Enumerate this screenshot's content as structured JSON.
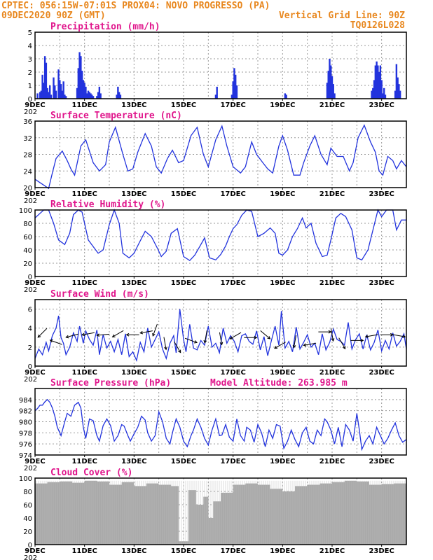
{
  "header": {
    "left1": "CPTEC:   056:15W-07:01S   PROX04: NOVO PROGRESSO (PA)",
    "left2": "09DEC2020 90Z (GMT)",
    "right2": "Vertical Grid Line: 90Z",
    "right3": "TQ0126L028",
    "altitude": "Model Altitude: 263.985 m"
  },
  "colors": {
    "header": "#e8871e",
    "panel_title": "#e0168c",
    "series": "#2233dd",
    "cloud": "#a9a9a9"
  },
  "x_axis": {
    "day_range": [
      9,
      24
    ],
    "tick_labels": [
      "9DEC",
      "11DEC",
      "13DEC",
      "15DEC",
      "17DEC",
      "19DEC",
      "21DEC",
      "23DEC"
    ],
    "tick_days": [
      9,
      11,
      13,
      15,
      17,
      19,
      21,
      23
    ],
    "year_label": "202"
  },
  "chart_data": [
    {
      "type": "bar",
      "title": "Precipitation (mm/h)",
      "ylim": [
        0,
        5
      ],
      "yticks": [
        "0",
        "1",
        "2",
        "3",
        "4",
        "5"
      ],
      "grid": true,
      "series": [
        {
          "x": [
            9.1,
            9.2,
            9.25,
            9.3,
            9.35,
            9.4,
            9.45,
            9.5,
            9.55,
            9.6,
            9.65,
            9.75,
            9.8,
            9.85,
            9.95,
            10.0,
            10.05,
            10.1,
            10.15,
            10.2,
            10.25,
            10.7,
            10.75,
            10.8,
            10.85,
            10.9,
            10.95,
            11.0,
            11.05,
            11.1,
            11.15,
            11.2,
            11.25,
            11.3,
            11.35,
            11.5,
            11.55,
            11.6,
            11.65,
            12.3,
            12.35,
            12.4,
            12.45,
            16.3,
            16.35,
            16.95,
            17.0,
            17.05,
            17.1,
            17.15,
            19.1,
            19.15,
            20.8,
            20.85,
            20.9,
            20.95,
            21.0,
            21.05,
            21.1,
            22.6,
            22.65,
            22.7,
            22.75,
            22.8,
            22.85,
            22.9,
            22.95,
            23.0,
            23.05,
            23.1,
            23.15,
            23.55,
            23.6,
            23.65,
            23.7,
            23.75
          ]
        }
      ],
      "values": [
        0.4,
        0.5,
        0.6,
        1.8,
        1.2,
        3.2,
        2.7,
        0.8,
        0.5,
        1.0,
        0.3,
        1.6,
        1.0,
        0.6,
        2.2,
        1.4,
        1.1,
        0.6,
        1.3,
        0.3,
        0.2,
        0.8,
        2.3,
        3.5,
        3.2,
        2.1,
        1.4,
        1.2,
        0.9,
        0.4,
        0.6,
        0.5,
        0.4,
        0.3,
        0.2,
        0.2,
        0.5,
        0.9,
        0.4,
        0.3,
        0.9,
        0.5,
        0.3,
        0.3,
        0.9,
        0.3,
        1.3,
        2.3,
        1.8,
        1.0,
        0.4,
        0.3,
        1.2,
        2.1,
        3.0,
        2.5,
        1.7,
        1.1,
        0.4,
        0.6,
        0.8,
        1.4,
        2.5,
        2.8,
        2.5,
        2.0,
        2.5,
        1.4,
        0.4,
        0.8,
        0.3,
        0.6,
        2.6,
        1.6,
        1.1,
        0.6
      ]
    },
    {
      "type": "line",
      "title": "Surface Temperature (nC)",
      "ylim": [
        20,
        36
      ],
      "yticks": [
        "20",
        "24",
        "28",
        "32",
        "36"
      ],
      "grid": true,
      "x": [
        9.0,
        9.2,
        9.35,
        9.55,
        9.7,
        9.85,
        10.1,
        10.3,
        10.45,
        10.6,
        10.85,
        11.05,
        11.35,
        11.6,
        11.85,
        12.0,
        12.25,
        12.55,
        12.75,
        12.95,
        13.15,
        13.45,
        13.7,
        13.9,
        14.1,
        14.35,
        14.55,
        14.8,
        15.0,
        15.3,
        15.55,
        15.8,
        16.0,
        16.3,
        16.55,
        16.75,
        17.0,
        17.3,
        17.5,
        17.75,
        17.95,
        18.2,
        18.4,
        18.6,
        18.85,
        19.0,
        19.2,
        19.45,
        19.7,
        19.85,
        20.1,
        20.3,
        20.55,
        20.8,
        20.95,
        21.2,
        21.45,
        21.7,
        21.85,
        22.05,
        22.3,
        22.55,
        22.75,
        22.9,
        23.05,
        23.25,
        23.45,
        23.6,
        23.8,
        24.0
      ],
      "series": [
        {
          "values": [
            22,
            21.2,
            20.6,
            19.8,
            23.5,
            27.0,
            28.8,
            26.5,
            24.5,
            23.0,
            30.0,
            31.5,
            26.0,
            24.0,
            25.5,
            31.0,
            34.5,
            28.0,
            24.0,
            24.5,
            28.5,
            33.0,
            30.0,
            25.0,
            23.5,
            27.0,
            29.0,
            26.0,
            26.5,
            32.5,
            34.5,
            28.0,
            25.0,
            31.5,
            34.8,
            30.0,
            25.0,
            23.5,
            25.0,
            31.0,
            28.0,
            26.0,
            24.5,
            23.5,
            30.0,
            32.5,
            29.0,
            23.0,
            23.0,
            26.0,
            30.0,
            32.5,
            28.0,
            25.5,
            29.5,
            27.5,
            27.5,
            24.0,
            26.0,
            32.0,
            35.0,
            31.0,
            28.5,
            24.0,
            23.0,
            27.5,
            26.5,
            24.5,
            26.5,
            25.0
          ]
        }
      ]
    },
    {
      "type": "line",
      "title": "Relative Humidity (%)",
      "ylim": [
        0,
        100
      ],
      "yticks": [
        "0",
        "20",
        "40",
        "60",
        "80",
        "100"
      ],
      "grid": true,
      "x": [
        9.0,
        9.2,
        9.35,
        9.55,
        9.75,
        9.95,
        10.2,
        10.4,
        10.55,
        10.75,
        10.9,
        11.15,
        11.35,
        11.55,
        11.75,
        12.0,
        12.2,
        12.4,
        12.55,
        12.8,
        13.0,
        13.2,
        13.45,
        13.7,
        13.95,
        14.1,
        14.3,
        14.5,
        14.75,
        15.0,
        15.25,
        15.45,
        15.65,
        15.85,
        16.05,
        16.3,
        16.5,
        16.7,
        16.85,
        17.0,
        17.15,
        17.35,
        17.55,
        17.75,
        18.0,
        18.25,
        18.5,
        18.7,
        18.85,
        19.0,
        19.2,
        19.4,
        19.6,
        19.8,
        19.95,
        20.15,
        20.35,
        20.6,
        20.8,
        20.95,
        21.15,
        21.35,
        21.55,
        21.8,
        22.0,
        22.2,
        22.45,
        22.65,
        22.85,
        23.0,
        23.2,
        23.45,
        23.6,
        23.8,
        24.0
      ],
      "series": [
        {
          "values": [
            88,
            95,
            100,
            100,
            80,
            55,
            48,
            65,
            93,
            100,
            97,
            55,
            45,
            35,
            40,
            78,
            100,
            80,
            35,
            28,
            35,
            50,
            68,
            60,
            42,
            30,
            38,
            65,
            72,
            30,
            24,
            32,
            45,
            58,
            28,
            25,
            33,
            46,
            60,
            72,
            78,
            92,
            100,
            98,
            60,
            65,
            73,
            65,
            35,
            32,
            40,
            60,
            72,
            88,
            73,
            80,
            50,
            30,
            32,
            55,
            88,
            95,
            90,
            70,
            28,
            25,
            40,
            70,
            100,
            90,
            100,
            100,
            70,
            85,
            85
          ]
        }
      ]
    },
    {
      "type": "line",
      "title": "Surface Wind (m/s)",
      "ylim": [
        0,
        7
      ],
      "yticks": [
        "0",
        "2",
        "4",
        "6"
      ],
      "grid": true,
      "x": [
        9.0,
        9.15,
        9.3,
        9.45,
        9.55,
        9.7,
        9.85,
        9.95,
        10.05,
        10.15,
        10.25,
        10.4,
        10.55,
        10.7,
        10.8,
        10.95,
        11.05,
        11.2,
        11.35,
        11.5,
        11.6,
        11.75,
        11.9,
        12.05,
        12.2,
        12.35,
        12.5,
        12.65,
        12.8,
        12.95,
        13.1,
        13.25,
        13.4,
        13.55,
        13.7,
        13.85,
        14.0,
        14.15,
        14.3,
        14.45,
        14.6,
        14.7,
        14.85,
        15.0,
        15.1,
        15.25,
        15.4,
        15.55,
        15.7,
        15.85,
        16.0,
        16.15,
        16.3,
        16.45,
        16.6,
        16.75,
        16.9,
        17.05,
        17.2,
        17.35,
        17.5,
        17.65,
        17.8,
        17.95,
        18.1,
        18.25,
        18.4,
        18.55,
        18.7,
        18.85,
        18.95,
        19.1,
        19.25,
        19.4,
        19.55,
        19.7,
        19.85,
        20.0,
        20.15,
        20.3,
        20.45,
        20.6,
        20.75,
        20.9,
        21.05,
        21.2,
        21.35,
        21.5,
        21.65,
        21.8,
        21.95,
        22.1,
        22.25,
        22.4,
        22.55,
        22.7,
        22.85,
        23.0,
        23.15,
        23.3,
        23.45,
        23.6,
        23.75,
        23.9,
        24.0
      ],
      "series": [
        {
          "values": [
            0.8,
            1.8,
            1.2,
            2.5,
            1.6,
            3.2,
            4.0,
            5.3,
            3.0,
            2.4,
            1.2,
            2.0,
            3.5,
            2.6,
            4.2,
            2.4,
            3.7,
            2.8,
            2.2,
            3.8,
            1.2,
            3.3,
            1.9,
            2.6,
            1.5,
            2.8,
            1.2,
            3.4,
            1.0,
            1.5,
            0.6,
            2.5,
            1.5,
            4.0,
            2.0,
            2.8,
            3.6,
            1.8,
            0.8,
            2.4,
            3.2,
            1.4,
            6.0,
            2.8,
            1.5,
            4.4,
            1.9,
            1.7,
            2.7,
            2.2,
            4.2,
            2.0,
            2.4,
            1.4,
            4.0,
            2.4,
            3.2,
            2.6,
            1.5,
            3.2,
            3.4,
            2.6,
            2.3,
            3.7,
            1.7,
            3.1,
            1.1,
            2.7,
            4.2,
            2.2,
            5.8,
            1.9,
            2.6,
            1.5,
            4.1,
            1.8,
            2.5,
            3.3,
            2.0,
            2.4,
            1.2,
            3.4,
            1.7,
            2.5,
            3.9,
            2.8,
            2.6,
            2.2,
            4.6,
            1.8,
            2.8,
            3.4,
            1.8,
            3.3,
            1.7,
            2.5,
            3.8,
            1.6,
            2.7,
            1.8,
            3.5,
            2.1,
            2.6,
            3.4,
            1.8
          ]
        }
      ],
      "wind_vectors": {
        "x": [
          9.3,
          9.85,
          10.5,
          11.15,
          11.75,
          12.35,
          12.95,
          13.5,
          13.85,
          14.25,
          14.75,
          15.3,
          15.9,
          16.5,
          17.1,
          17.7,
          18.3,
          18.9,
          19.5,
          20.1,
          20.7,
          21.0,
          21.4,
          22.0,
          22.6,
          23.2,
          23.7
        ],
        "y": [
          3.5,
          2.5,
          3.2,
          3.4,
          3.3,
          3.4,
          3.3,
          3.6,
          3.8,
          2.4,
          2.0,
          2.7,
          3.1,
          2.9,
          3.2,
          3.0,
          3.3,
          2.2,
          2.6,
          2.3,
          3.6,
          3.3,
          2.4,
          2.7,
          3.2,
          3.3,
          3.2
        ],
        "dir_deg": [
          135,
          200,
          165,
          170,
          175,
          150,
          180,
          170,
          110,
          80,
          60,
          20,
          100,
          80,
          150,
          0,
          40,
          150,
          100,
          170,
          0,
          80,
          60,
          0,
          170,
          0,
          10
        ]
      }
    },
    {
      "type": "line",
      "title": "Surface Pressure (hPa)",
      "ylim": [
        974,
        986
      ],
      "yticks": [
        "974",
        "976",
        "978",
        "980",
        "982",
        "984"
      ],
      "grid": true,
      "x": [
        9.0,
        9.1,
        9.2,
        9.3,
        9.4,
        9.5,
        9.6,
        9.7,
        9.8,
        9.9,
        10.05,
        10.2,
        10.3,
        10.45,
        10.6,
        10.75,
        10.85,
        10.95,
        11.05,
        11.2,
        11.35,
        11.5,
        11.6,
        11.75,
        11.9,
        12.05,
        12.2,
        12.35,
        12.5,
        12.6,
        12.75,
        12.85,
        13.0,
        13.15,
        13.3,
        13.45,
        13.55,
        13.7,
        13.85,
        14.0,
        14.15,
        14.3,
        14.45,
        14.55,
        14.7,
        14.85,
        15.0,
        15.15,
        15.3,
        15.4,
        15.55,
        15.7,
        15.85,
        16.0,
        16.15,
        16.3,
        16.45,
        16.55,
        16.7,
        16.85,
        17.0,
        17.15,
        17.3,
        17.45,
        17.55,
        17.7,
        17.85,
        18.0,
        18.15,
        18.3,
        18.45,
        18.6,
        18.75,
        18.9,
        19.05,
        19.2,
        19.35,
        19.5,
        19.65,
        19.8,
        19.95,
        20.1,
        20.25,
        20.4,
        20.55,
        20.7,
        20.8,
        20.95,
        21.1,
        21.25,
        21.4,
        21.55,
        21.7,
        21.85,
        22.0,
        22.1,
        22.2,
        22.35,
        22.5,
        22.65,
        22.8,
        22.95,
        23.1,
        23.25,
        23.4,
        23.55,
        23.7,
        23.85,
        24.0
      ],
      "series": [
        {
          "values": [
            982,
            982.4,
            983,
            983,
            983.6,
            984,
            983.5,
            982.5,
            981,
            979,
            977.5,
            980,
            981.5,
            981,
            983,
            983.5,
            982.5,
            979,
            977,
            980.5,
            980.2,
            977.5,
            976.5,
            979.3,
            980.5,
            979.3,
            976.5,
            977.5,
            979.5,
            979.2,
            977.5,
            976.5,
            977.8,
            979,
            981,
            980.3,
            978,
            976.5,
            977.5,
            981.8,
            980,
            977,
            976,
            978,
            980.5,
            979,
            976.5,
            975.5,
            977.5,
            978.5,
            980.5,
            979,
            977,
            975.8,
            978.5,
            980.5,
            977.5,
            977.6,
            979.5,
            977.2,
            976.5,
            980.5,
            977.5,
            976.5,
            979,
            978.5,
            976.3,
            979.5,
            978,
            975.5,
            978.5,
            977,
            979.5,
            979.2,
            975.2,
            976.5,
            978.5,
            976.8,
            975.5,
            978,
            979,
            976.5,
            976,
            978.5,
            977.5,
            980.5,
            980,
            978.5,
            976,
            979,
            975.5,
            979.5,
            978.5,
            976.5,
            981.5,
            978.5,
            975,
            976.5,
            977.5,
            976,
            979,
            977.5,
            976,
            977,
            978.5,
            979.8,
            977.5,
            976.3,
            976.8
          ]
        }
      ]
    },
    {
      "type": "bar",
      "title": "Cloud Cover (%)",
      "ylim": [
        0,
        100
      ],
      "yticks": [
        "0",
        "20",
        "40",
        "60",
        "80",
        "100"
      ],
      "grid": true,
      "x": [
        9.0,
        9.5,
        10.0,
        10.5,
        11.0,
        11.5,
        12.0,
        12.5,
        13.0,
        13.5,
        14.0,
        14.5,
        14.8,
        15.2,
        15.5,
        15.8,
        16.0,
        16.2,
        16.5,
        17.0,
        17.5,
        18.0,
        18.5,
        19.0,
        19.5,
        20.0,
        20.5,
        21.0,
        21.5,
        22.0,
        22.5,
        23.0,
        23.5,
        24.0
      ],
      "values": [
        92,
        94,
        95,
        93,
        96,
        95,
        90,
        94,
        88,
        92,
        90,
        88,
        5,
        82,
        60,
        72,
        40,
        65,
        78,
        90,
        92,
        90,
        84,
        80,
        88,
        90,
        92,
        94,
        96,
        95,
        90,
        91,
        92,
        90
      ]
    }
  ]
}
